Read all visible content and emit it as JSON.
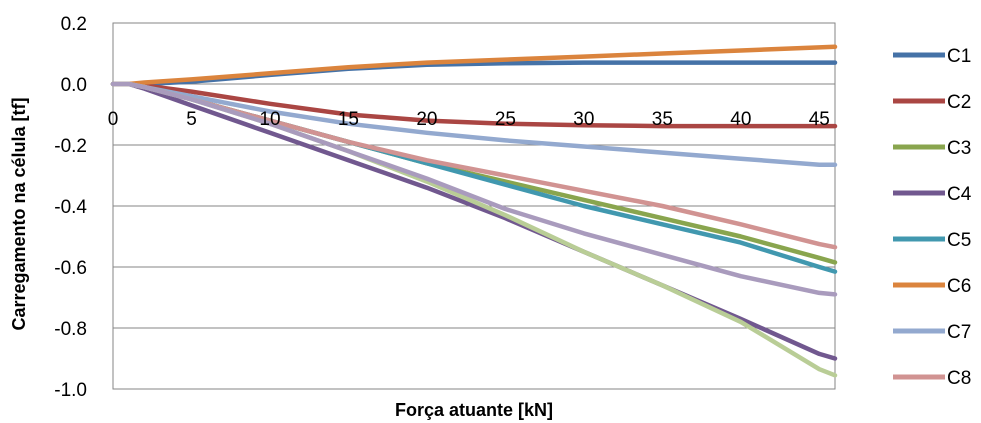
{
  "chart_data": {
    "type": "line",
    "title": "",
    "xlabel": "Força atuante [kN]",
    "ylabel": "Carregamento na célula [tf]",
    "xlim": [
      0,
      46
    ],
    "ylim": [
      -1.0,
      0.2
    ],
    "x_ticks": [
      "0",
      "5",
      "10",
      "15",
      "20",
      "25",
      "30",
      "35",
      "40",
      "45"
    ],
    "y_ticks": [
      "0.2",
      "0.0",
      "-0.2",
      "-0.4",
      "-0.6",
      "-0.8",
      "-1.0"
    ],
    "grid": true,
    "legend_position": "right",
    "series": [
      {
        "name": "C1",
        "color": "#4572A7",
        "x": [
          0,
          1,
          2,
          5,
          10,
          15,
          20,
          25,
          30,
          35,
          40,
          45,
          46
        ],
        "y": [
          0,
          0,
          0,
          0.008,
          0.03,
          0.05,
          0.063,
          0.068,
          0.07,
          0.07,
          0.07,
          0.07,
          0.07
        ]
      },
      {
        "name": "C2",
        "color": "#AA4643",
        "x": [
          0,
          1,
          2,
          5,
          10,
          15,
          20,
          25,
          30,
          35,
          40,
          45,
          46
        ],
        "y": [
          0,
          0,
          -0.005,
          -0.025,
          -0.065,
          -0.1,
          -0.12,
          -0.13,
          -0.135,
          -0.138,
          -0.138,
          -0.138,
          -0.138
        ]
      },
      {
        "name": "C3",
        "color": "#89A54E",
        "x": [
          0,
          1,
          2,
          5,
          10,
          15,
          20,
          25,
          30,
          35,
          40,
          45,
          46
        ],
        "y": [
          0,
          0,
          -0.01,
          -0.05,
          -0.12,
          -0.19,
          -0.26,
          -0.32,
          -0.38,
          -0.44,
          -0.5,
          -0.57,
          -0.585
        ]
      },
      {
        "name": "C4",
        "color": "#71588F",
        "x": [
          0,
          1,
          2,
          5,
          10,
          15,
          20,
          25,
          30,
          35,
          40,
          45,
          46
        ],
        "y": [
          0,
          0,
          -0.015,
          -0.07,
          -0.16,
          -0.25,
          -0.34,
          -0.44,
          -0.55,
          -0.66,
          -0.77,
          -0.885,
          -0.9
        ]
      },
      {
        "name": "C5",
        "color": "#4198AF",
        "x": [
          0,
          1,
          2,
          5,
          10,
          15,
          20,
          25,
          30,
          35,
          40,
          45,
          46
        ],
        "y": [
          0,
          0,
          -0.01,
          -0.05,
          -0.12,
          -0.19,
          -0.26,
          -0.33,
          -0.4,
          -0.46,
          -0.52,
          -0.6,
          -0.615
        ]
      },
      {
        "name": "C6",
        "color": "#DB843D",
        "x": [
          0,
          1,
          2,
          5,
          10,
          15,
          20,
          25,
          30,
          35,
          40,
          45,
          46
        ],
        "y": [
          0,
          0,
          0.005,
          0.015,
          0.035,
          0.055,
          0.07,
          0.08,
          0.09,
          0.1,
          0.11,
          0.12,
          0.122
        ]
      },
      {
        "name": "C7",
        "color": "#93A9CF",
        "x": [
          0,
          1,
          2,
          5,
          10,
          15,
          20,
          25,
          30,
          35,
          40,
          45,
          46
        ],
        "y": [
          0,
          0,
          -0.01,
          -0.04,
          -0.09,
          -0.13,
          -0.16,
          -0.185,
          -0.205,
          -0.225,
          -0.245,
          -0.265,
          -0.265
        ]
      },
      {
        "name": "C8",
        "color": "#D19392",
        "x": [
          0,
          1,
          2,
          5,
          10,
          15,
          20,
          25,
          30,
          35,
          40,
          45,
          46
        ],
        "y": [
          0,
          0,
          -0.01,
          -0.05,
          -0.12,
          -0.19,
          -0.25,
          -0.3,
          -0.35,
          -0.4,
          -0.46,
          -0.525,
          -0.535
        ]
      },
      {
        "name": "",
        "color": "#B9CD96",
        "x": [
          0,
          1,
          2,
          5,
          10,
          15,
          20,
          25,
          30,
          35,
          40,
          45,
          46
        ],
        "y": [
          0,
          0,
          -0.01,
          -0.05,
          -0.13,
          -0.22,
          -0.32,
          -0.43,
          -0.55,
          -0.66,
          -0.78,
          -0.935,
          -0.955
        ]
      },
      {
        "name": "",
        "color": "#A99BBD",
        "x": [
          0,
          1,
          2,
          5,
          10,
          15,
          20,
          25,
          30,
          35,
          40,
          45,
          46
        ],
        "y": [
          0,
          0,
          -0.01,
          -0.05,
          -0.13,
          -0.22,
          -0.31,
          -0.41,
          -0.49,
          -0.56,
          -0.63,
          -0.685,
          -0.69
        ]
      }
    ]
  }
}
